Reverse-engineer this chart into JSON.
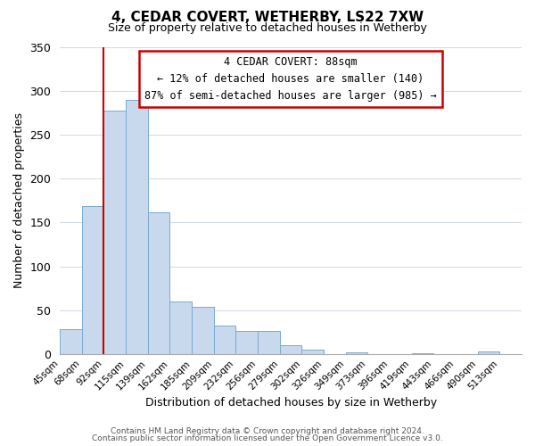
{
  "title": "4, CEDAR COVERT, WETHERBY, LS22 7XW",
  "subtitle": "Size of property relative to detached houses in Wetherby",
  "xlabel": "Distribution of detached houses by size in Wetherby",
  "ylabel": "Number of detached properties",
  "bar_labels": [
    "45sqm",
    "68sqm",
    "92sqm",
    "115sqm",
    "139sqm",
    "162sqm",
    "185sqm",
    "209sqm",
    "232sqm",
    "256sqm",
    "279sqm",
    "302sqm",
    "326sqm",
    "349sqm",
    "373sqm",
    "396sqm",
    "419sqm",
    "443sqm",
    "466sqm",
    "490sqm",
    "513sqm"
  ],
  "bar_values": [
    29,
    169,
    277,
    290,
    162,
    60,
    54,
    33,
    27,
    27,
    10,
    5,
    0,
    2,
    0,
    0,
    1,
    0,
    0,
    3,
    0
  ],
  "bar_color": "#c8d9ee",
  "bar_edge_color": "#7aaad0",
  "vline_position": 2.0,
  "vline_color": "#cc0000",
  "ylim": [
    0,
    350
  ],
  "yticks": [
    0,
    50,
    100,
    150,
    200,
    250,
    300,
    350
  ],
  "annotation_title": "4 CEDAR COVERT: 88sqm",
  "annotation_line1": "← 12% of detached houses are smaller (140)",
  "annotation_line2": "87% of semi-detached houses are larger (985) →",
  "annotation_box_color": "#ffffff",
  "annotation_box_edge_color": "#cc0000",
  "footer_line1": "Contains HM Land Registry data © Crown copyright and database right 2024.",
  "footer_line2": "Contains public sector information licensed under the Open Government Licence v3.0.",
  "background_color": "#ffffff",
  "grid_color": "#d0d8e8"
}
